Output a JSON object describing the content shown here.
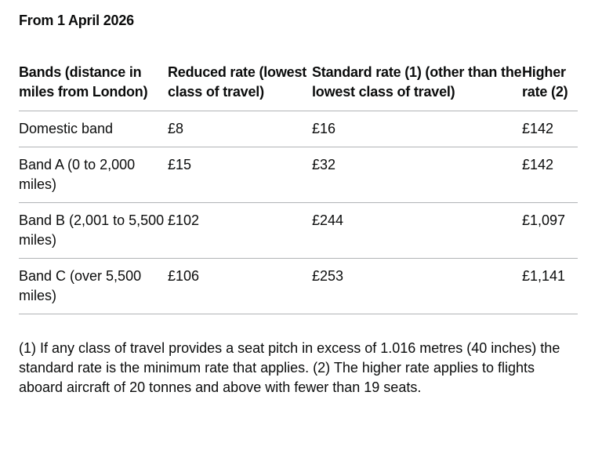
{
  "heading": "From 1 April 2026",
  "table": {
    "headers": [
      "Bands (distance in miles from London)",
      "Reduced rate (lowest class of travel)",
      "Standard rate (1) (other than the lowest class of travel)",
      "Higher rate (2)"
    ],
    "rows": [
      [
        "Domestic band",
        "£8",
        "£16",
        "£142"
      ],
      [
        "Band A (0 to 2,000 miles)",
        "£15",
        "£32",
        "£142"
      ],
      [
        "Band B (2,001 to 5,500 miles)",
        "£102",
        "£244",
        "£1,097"
      ],
      [
        "Band C (over 5,500 miles)",
        "£106",
        "£253",
        "£1,141"
      ]
    ]
  },
  "footnote": "(1) If any class of travel provides a seat pitch in excess of 1.016 metres (40 inches) the standard rate is the minimum rate that applies. (2) The higher rate applies to flights aboard aircraft of 20 tonnes and above with fewer than 19 seats."
}
